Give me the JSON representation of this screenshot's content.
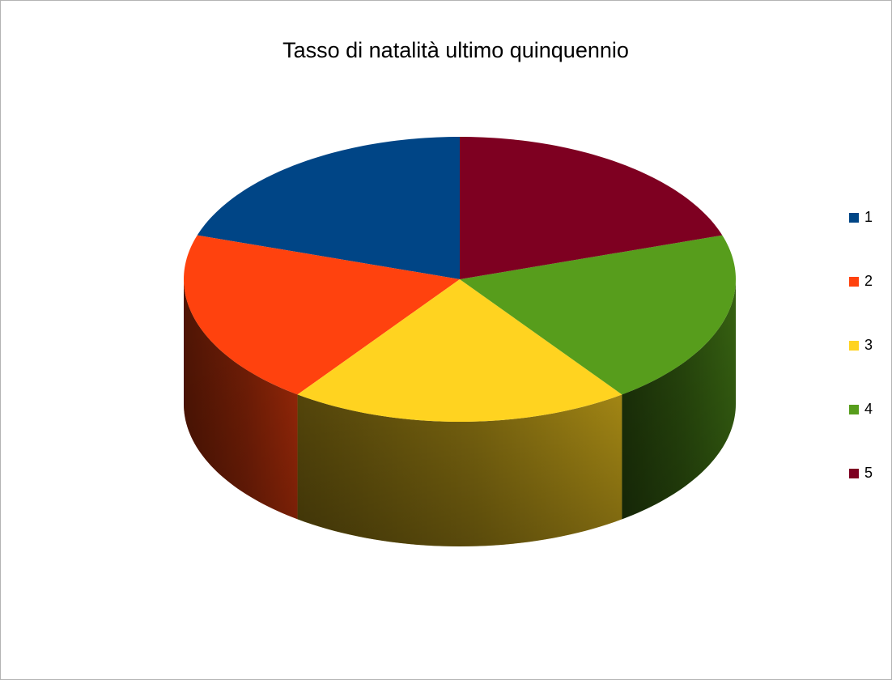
{
  "chart_data": {
    "type": "pie",
    "style": "3d",
    "title": "Tasso di natalità ultimo quinquennio",
    "legend_position": "right",
    "slices": [
      {
        "label": "1",
        "value": 1,
        "color": "#004586"
      },
      {
        "label": "2",
        "value": 1,
        "color": "#ff420e"
      },
      {
        "label": "3",
        "value": 1,
        "color": "#ffd320"
      },
      {
        "label": "4",
        "value": 1,
        "color": "#579d1c"
      },
      {
        "label": "5",
        "value": 1,
        "color": "#7e0021"
      }
    ]
  }
}
